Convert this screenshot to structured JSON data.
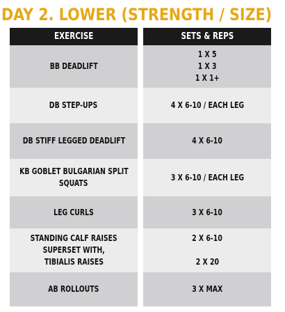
{
  "title": "DAY 2. LOWER (STRENGTH / SIZE)",
  "headers": {
    "exercise": "EXERCISE",
    "sets_reps": "SETS & REPS"
  },
  "rows": [
    {
      "exercise": [
        "BB DEADLIFT"
      ],
      "sets": [
        "1 X 5",
        "1 X 3",
        "1 X 1+"
      ]
    },
    {
      "exercise": [
        "DB STEP-UPS"
      ],
      "sets": [
        "4 X 6-10 / EACH LEG"
      ]
    },
    {
      "exercise": [
        "DB STIFF LEGGED DEADLIFT"
      ],
      "sets": [
        "4 X 6-10"
      ]
    },
    {
      "exercise": [
        "KB GOBLET BULGARIAN SPLIT",
        "SQUATS"
      ],
      "sets": [
        "3 X 6-10 / EACH LEG"
      ]
    },
    {
      "exercise": [
        "LEG CURLS"
      ],
      "sets": [
        "3 X 6-10"
      ]
    },
    {
      "exercise": [
        "STANDING CALF RAISES",
        "SUPERSET WITH,",
        "TIBIALIS RAISES"
      ],
      "sets": [
        "2 X 6-10",
        "",
        "2 X 20"
      ]
    },
    {
      "exercise": [
        "AB ROLLOUTS"
      ],
      "sets": [
        "3 X MAX"
      ]
    }
  ]
}
